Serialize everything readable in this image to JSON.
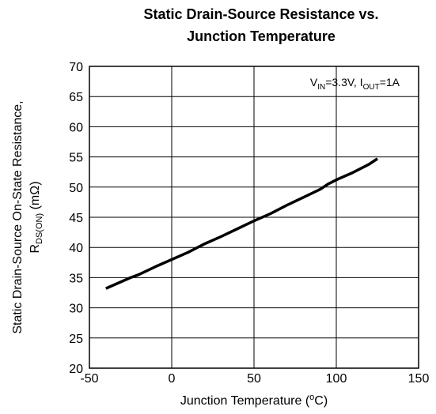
{
  "chart_data": {
    "type": "line",
    "title": [
      "Static Drain-Source Resistance vs.",
      "Junction Temperature"
    ],
    "y_label": {
      "line1": "Static Drain-Source On-State Resistance,",
      "line2": [
        "R",
        "DS(ON)",
        " (mΩ)"
      ]
    },
    "x_label": [
      "Junction Temperature (",
      "o",
      "C)"
    ],
    "annotation": [
      "V",
      "IN",
      "=3.3V, I",
      "OUT",
      "=1A"
    ],
    "x": [
      -40,
      -25,
      -20,
      -10,
      0,
      10,
      20,
      30,
      40,
      50,
      60,
      70,
      80,
      90,
      95,
      100,
      110,
      120,
      125
    ],
    "series": [
      {
        "color": "#000000",
        "values": [
          33.2,
          35.0,
          35.5,
          36.8,
          38.0,
          39.2,
          40.6,
          41.8,
          43.1,
          44.4,
          45.6,
          47.0,
          48.3,
          49.6,
          50.5,
          51.2,
          52.4,
          53.8,
          54.7
        ]
      }
    ],
    "xlim": [
      -50,
      150
    ],
    "xticks": [
      -50,
      0,
      50,
      100,
      150
    ],
    "ylim": [
      20,
      70
    ],
    "yticks": [
      20,
      25,
      30,
      35,
      40,
      45,
      50,
      55,
      60,
      65,
      70
    ],
    "grid": true
  }
}
